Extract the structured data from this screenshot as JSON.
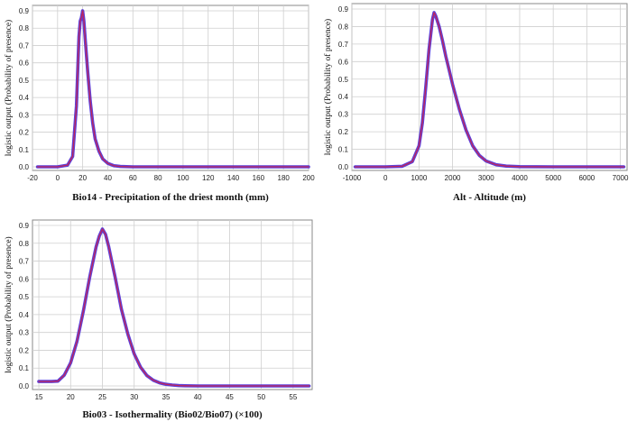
{
  "colors": {
    "band": "#4b2bd6",
    "mean": "#c0265a",
    "grid": "#cfcfcf",
    "frame": "#8a8a8a"
  },
  "chart_data": [
    {
      "type": "line",
      "xlabel": "Bio14 - Precipitation of the driest month (mm)",
      "ylabel": "logistic output (Probability of presence)",
      "xlim": [
        -20,
        200
      ],
      "ylim": [
        0,
        0.9
      ],
      "xticks": [
        -20,
        0,
        20,
        40,
        60,
        80,
        100,
        120,
        140,
        160,
        180,
        200
      ],
      "yticks": [
        0.0,
        0.1,
        0.2,
        0.3,
        0.4,
        0.5,
        0.6,
        0.7,
        0.8,
        0.9
      ],
      "grid": true,
      "series": [
        {
          "x": [
            -16,
            0,
            8,
            12,
            15,
            17,
            18,
            19,
            20,
            21,
            22,
            24,
            26,
            28,
            30,
            33,
            36,
            40,
            45,
            50,
            60,
            100,
            150,
            200
          ],
          "y": [
            0.0,
            0.0,
            0.01,
            0.06,
            0.35,
            0.75,
            0.84,
            0.86,
            0.9,
            0.84,
            0.74,
            0.55,
            0.38,
            0.25,
            0.16,
            0.09,
            0.045,
            0.02,
            0.006,
            0.002,
            0.0,
            0.0,
            0.0,
            0.0
          ]
        }
      ]
    },
    {
      "type": "line",
      "xlabel": "Alt - Altitude (m)",
      "ylabel": "logistic output (Probability of presence)",
      "xlim": [
        -1000,
        7200
      ],
      "ylim": [
        0,
        0.9
      ],
      "xticks": [
        -1000,
        0,
        1000,
        2000,
        3000,
        4000,
        5000,
        6000,
        7000
      ],
      "yticks": [
        0.0,
        0.1,
        0.2,
        0.3,
        0.4,
        0.5,
        0.6,
        0.7,
        0.8,
        0.9
      ],
      "grid": true,
      "series": [
        {
          "x": [
            -900,
            0,
            500,
            800,
            1000,
            1100,
            1200,
            1300,
            1400,
            1450,
            1500,
            1600,
            1700,
            1800,
            1900,
            2000,
            2200,
            2400,
            2600,
            2800,
            3000,
            3300,
            3600,
            4000,
            5000,
            6000,
            7100
          ],
          "y": [
            0.0,
            0.0,
            0.003,
            0.03,
            0.12,
            0.25,
            0.45,
            0.67,
            0.84,
            0.88,
            0.86,
            0.8,
            0.72,
            0.63,
            0.55,
            0.47,
            0.33,
            0.21,
            0.12,
            0.065,
            0.033,
            0.012,
            0.004,
            0.001,
            0.0,
            0.0,
            0.0
          ]
        }
      ]
    },
    {
      "type": "line",
      "xlabel": "Bio03 - Isothermality (Bio02/Bio07) (×100)",
      "ylabel": "logistic output (Probability of presence)",
      "xlim": [
        14,
        58
      ],
      "ylim": [
        0,
        0.9
      ],
      "xticks": [
        15,
        20,
        25,
        30,
        35,
        40,
        45,
        50,
        55
      ],
      "yticks": [
        0.0,
        0.1,
        0.2,
        0.3,
        0.4,
        0.5,
        0.6,
        0.7,
        0.8,
        0.9
      ],
      "grid": true,
      "series": [
        {
          "x": [
            15,
            16,
            17,
            18,
            19,
            20,
            21,
            22,
            23,
            24,
            24.5,
            25,
            25.5,
            26,
            27,
            28,
            29,
            30,
            31,
            32,
            33,
            34,
            35,
            36,
            37,
            38,
            40,
            45,
            50,
            57.5
          ],
          "y": [
            0.025,
            0.025,
            0.025,
            0.027,
            0.06,
            0.13,
            0.25,
            0.42,
            0.61,
            0.78,
            0.84,
            0.88,
            0.85,
            0.78,
            0.61,
            0.43,
            0.29,
            0.18,
            0.105,
            0.058,
            0.032,
            0.017,
            0.009,
            0.005,
            0.002,
            0.001,
            0.0,
            0.0,
            0.0,
            0.0
          ]
        }
      ]
    }
  ]
}
